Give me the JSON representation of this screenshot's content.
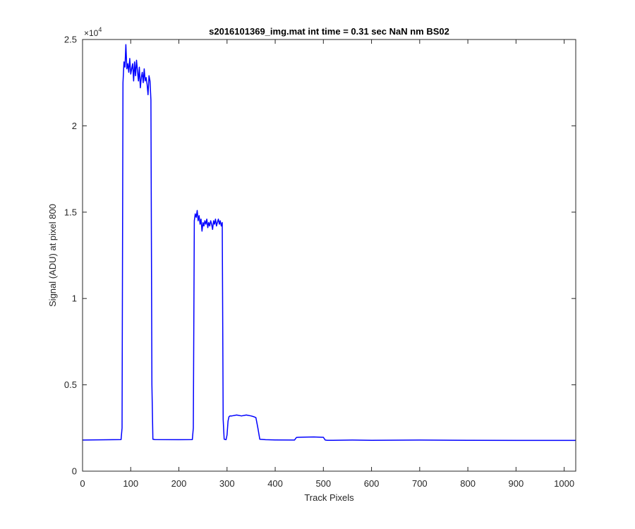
{
  "chart_data": {
    "type": "line",
    "title": "s2016101369_img.mat int time = 0.31 sec  NaN nm BS02",
    "xlabel": "Track Pixels",
    "ylabel": "Signal (ADU) at pixel 800",
    "xlim": [
      0,
      1024
    ],
    "ylim": [
      0,
      25000
    ],
    "x_ticks": [
      0,
      100,
      200,
      300,
      400,
      500,
      600,
      700,
      800,
      900,
      1000
    ],
    "y_ticks": [
      0,
      5000,
      10000,
      15000,
      20000,
      25000
    ],
    "y_tick_labels": [
      "0",
      "0.5",
      "1",
      "1.5",
      "2",
      "2.5"
    ],
    "y_exponent_base": "×10",
    "y_exponent_power": "4",
    "grid": false,
    "colors": {
      "line": "#0000ff",
      "axes": "#262626"
    },
    "series": [
      {
        "x": [
          0,
          80,
          82,
          84,
          86,
          88,
          90,
          92,
          94,
          96,
          98,
          100,
          102,
          104,
          106,
          108,
          110,
          112,
          114,
          116,
          118,
          120,
          122,
          124,
          126,
          128,
          130,
          132,
          134,
          136,
          138,
          140,
          142,
          144,
          146,
          150,
          200,
          228,
          230,
          232,
          234,
          236,
          238,
          240,
          242,
          244,
          246,
          248,
          250,
          252,
          254,
          256,
          258,
          260,
          262,
          264,
          266,
          268,
          270,
          272,
          274,
          276,
          278,
          280,
          282,
          284,
          286,
          288,
          290,
          292,
          294,
          298,
          300,
          302,
          304,
          306,
          310,
          320,
          330,
          340,
          350,
          356,
          360,
          364,
          368,
          380,
          400,
          440,
          444,
          448,
          460,
          480,
          500,
          504,
          508,
          520,
          560,
          600,
          700,
          800,
          900,
          1000,
          1024
        ],
        "y": [
          1800,
          1830,
          2500,
          22500,
          23700,
          23400,
          24700,
          23300,
          23600,
          23100,
          23900,
          23000,
          23300,
          23600,
          22600,
          23700,
          22900,
          23800,
          23200,
          22600,
          23400,
          22200,
          22800,
          23100,
          22500,
          23300,
          22600,
          22800,
          22400,
          21800,
          22900,
          22600,
          21500,
          5000,
          1850,
          1830,
          1820,
          1830,
          2500,
          14500,
          14900,
          14700,
          15100,
          14500,
          14800,
          14300,
          14600,
          13900,
          14400,
          14200,
          14500,
          14300,
          14600,
          14100,
          14400,
          14200,
          14500,
          14300,
          14000,
          14500,
          14300,
          14600,
          14200,
          14400,
          14600,
          14300,
          14500,
          14200,
          14400,
          3000,
          1850,
          1820,
          2100,
          2900,
          3150,
          3200,
          3200,
          3250,
          3200,
          3250,
          3200,
          3150,
          3100,
          2500,
          1850,
          1820,
          1810,
          1800,
          1950,
          1960,
          1970,
          1980,
          1960,
          1800,
          1790,
          1790,
          1800,
          1790,
          1800,
          1790,
          1780,
          1780,
          1780
        ]
      }
    ]
  }
}
